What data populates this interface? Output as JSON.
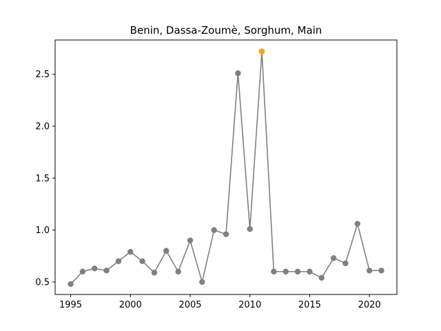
{
  "chart_data": {
    "type": "line",
    "title": "Benin, Dassa-Zoumè, Sorghum, Main",
    "xlabel": "",
    "ylabel": "",
    "x": [
      1995,
      1996,
      1997,
      1998,
      1999,
      2000,
      2001,
      2002,
      2003,
      2004,
      2005,
      2006,
      2007,
      2008,
      2009,
      2010,
      2011,
      2012,
      2013,
      2014,
      2015,
      2016,
      2017,
      2018,
      2019,
      2020,
      2021
    ],
    "series": [
      {
        "values": [
          0.48,
          0.6,
          0.63,
          0.61,
          0.7,
          0.79,
          0.7,
          0.59,
          0.8,
          0.6,
          0.9,
          0.5,
          1.0,
          0.96,
          2.51,
          1.01,
          2.72,
          0.6,
          0.6,
          0.6,
          0.6,
          0.54,
          0.73,
          0.68,
          1.06,
          0.61,
          0.61
        ],
        "color": "#808080"
      }
    ],
    "highlight": {
      "x": 2011,
      "y": 2.72,
      "color": "#FFA500"
    },
    "xlim": [
      1993.7,
      2022.3
    ],
    "ylim": [
      0.38,
      2.83
    ],
    "xticks": [
      1995,
      2000,
      2005,
      2010,
      2015,
      2020
    ],
    "yticks": [
      0.5,
      1.0,
      1.5,
      2.0,
      2.5
    ],
    "ytick_labels": [
      "0.5",
      "1.0",
      "1.5",
      "2.0",
      "2.5"
    ],
    "grid": false,
    "legend": "none"
  }
}
